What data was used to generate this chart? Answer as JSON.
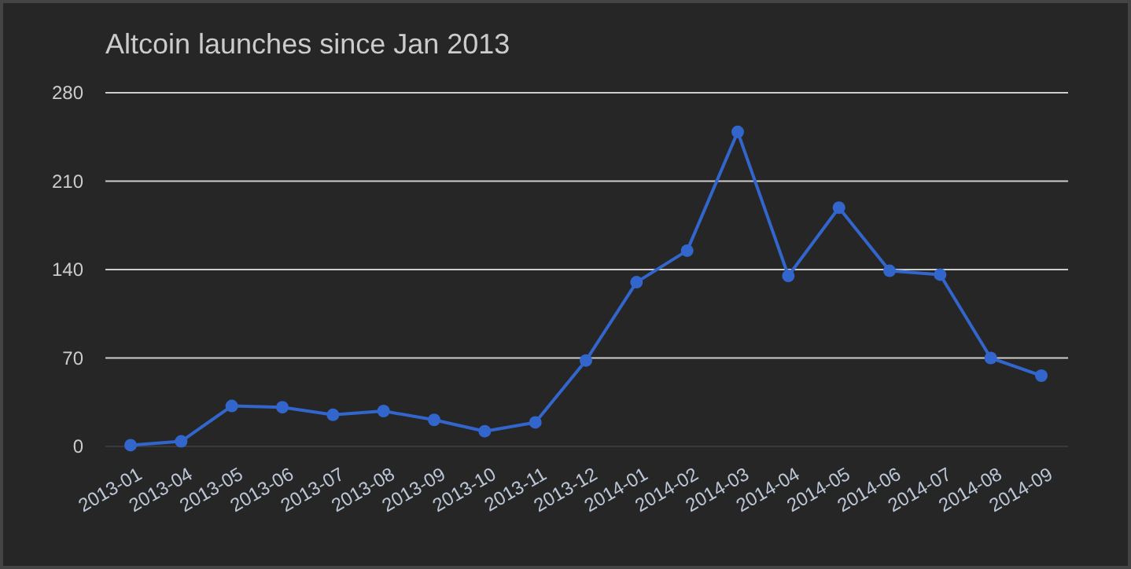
{
  "chart_data": {
    "type": "line",
    "title": "Altcoin launches since Jan 2013",
    "categories": [
      "2013-01",
      "2013-04",
      "2013-05",
      "2013-06",
      "2013-07",
      "2013-08",
      "2013-09",
      "2013-10",
      "2013-11",
      "2013-12",
      "2014-01",
      "2014-02",
      "2014-03",
      "2014-04",
      "2014-05",
      "2014-06",
      "2014-07",
      "2014-08",
      "2014-09"
    ],
    "series": [
      {
        "color": "#3366cc",
        "values": [
          1,
          4,
          32,
          31,
          25,
          28,
          21,
          12,
          19,
          68,
          130,
          155,
          249,
          135,
          189,
          139,
          136,
          70,
          56
        ]
      }
    ],
    "ylim": [
      0,
      280
    ],
    "yticks": [
      0,
      70,
      140,
      210,
      280
    ],
    "grid": "y",
    "marker": "circle",
    "line_style": "solid"
  }
}
